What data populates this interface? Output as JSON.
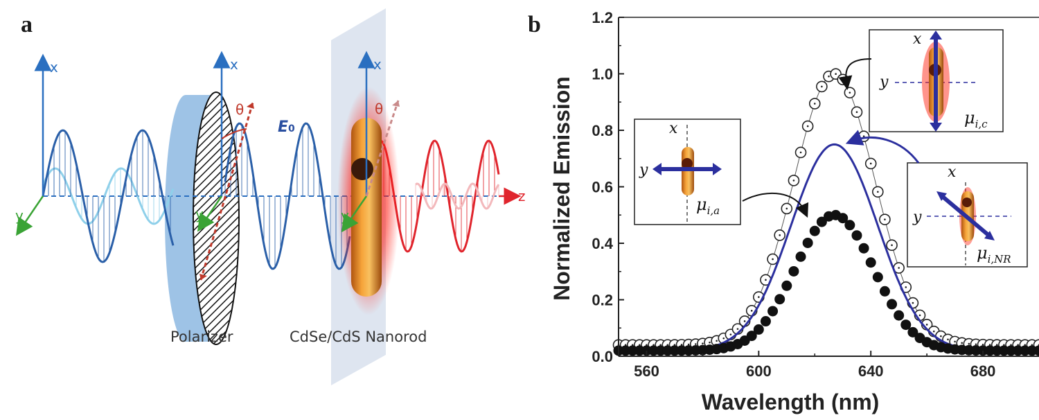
{
  "panel_a": {
    "letter": "a",
    "axis_x": "x",
    "axis_y": "y",
    "axis_z": "z",
    "theta": "θ",
    "field": "E",
    "field_sub": "0",
    "polarizer_label": "Polarizer",
    "nanorod_label": "CdSe/CdS Nanorod",
    "colors": {
      "blue_wave": "#2a5fa8",
      "light_wave": "#8fd0ea",
      "red_wave": "#e0242c",
      "axis": "#2a6fc0",
      "y_axis": "#3aa335"
    }
  },
  "panel_b": {
    "letter": "b",
    "insets": {
      "c": {
        "x": "x",
        "y": "y",
        "mu": "μ",
        "sub": "i,c"
      },
      "a": {
        "x": "x",
        "y": "y",
        "mu": "μ",
        "sub": "i,a"
      },
      "nr": {
        "x": "x",
        "y": "y",
        "mu": "μ",
        "sub": "i,NR"
      }
    }
  },
  "chart_data": {
    "type": "line",
    "xlabel": "Wavelength (nm)",
    "ylabel": "Normalized Emission",
    "xlim": [
      550,
      700
    ],
    "ylim": [
      0,
      1.2
    ],
    "xticks": [
      "560",
      "600",
      "640",
      "680"
    ],
    "yticks": [
      "0.0",
      "0.2",
      "0.4",
      "0.6",
      "0.8",
      "1.0",
      "1.2"
    ],
    "grid": false,
    "peak_nm": 627,
    "series": [
      {
        "marker": "open-circle",
        "color": "#222222",
        "peak": 1.0,
        "width_nm": 14.5,
        "baseline": 0.04
      },
      {
        "marker": "solid-line",
        "color": "#2b2f9e",
        "peak": 0.75,
        "width_nm": 15.5,
        "baseline": 0.02
      },
      {
        "marker": "filled-circle",
        "color": "#111111",
        "peak": 0.5,
        "width_nm": 14.0,
        "baseline": 0.02
      }
    ]
  }
}
